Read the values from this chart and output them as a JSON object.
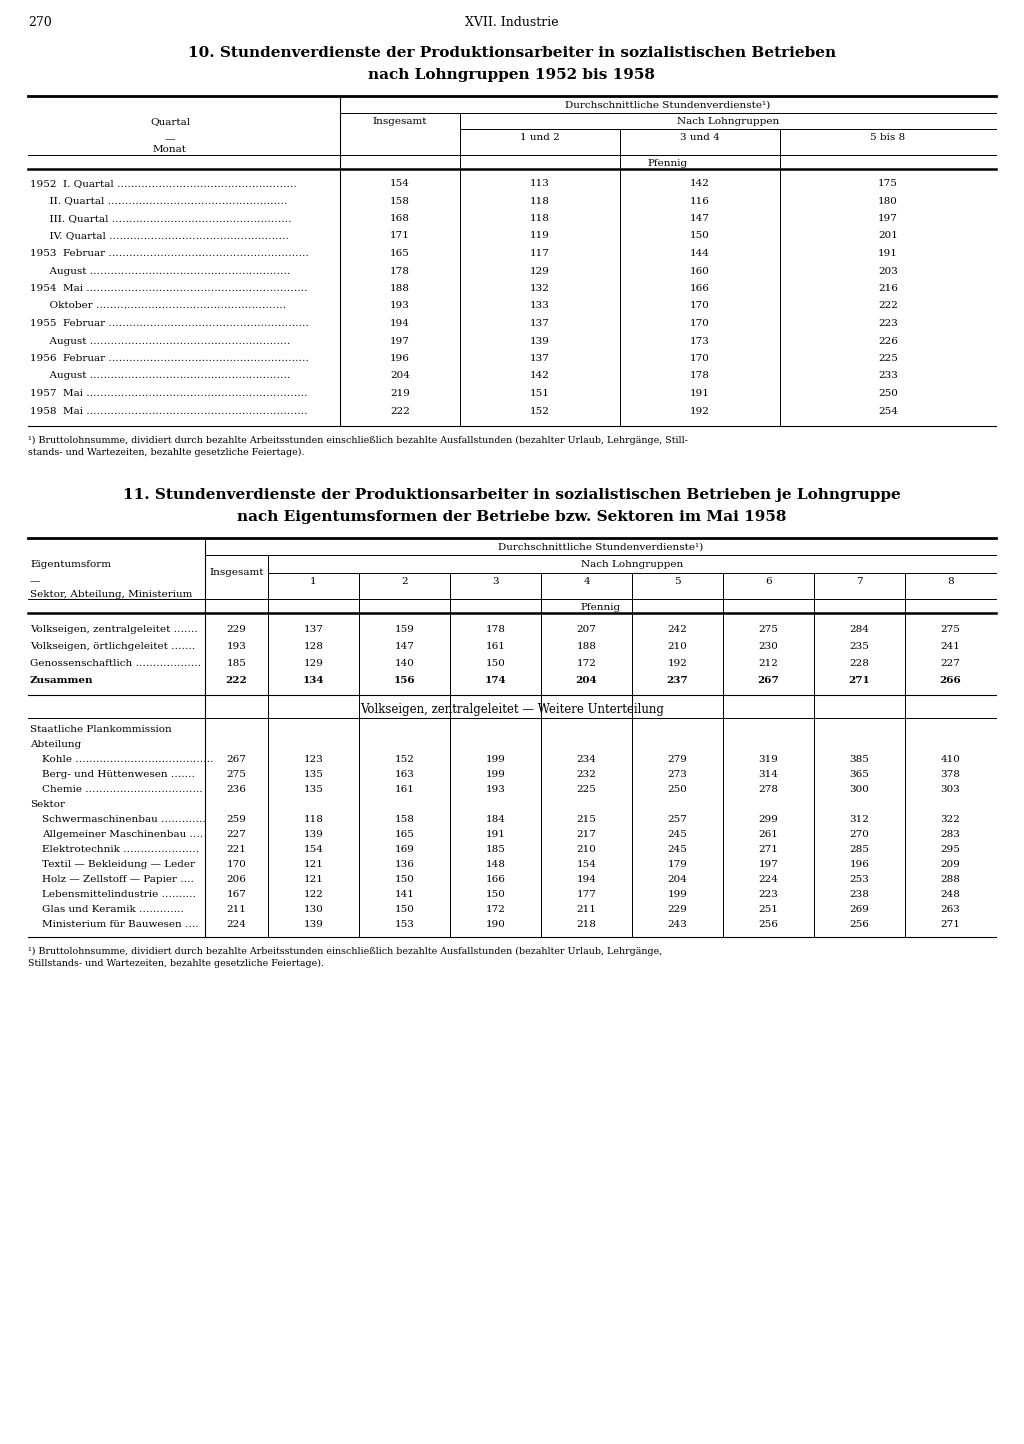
{
  "page_number": "270",
  "page_header": "XVII. Industrie",
  "title10_line1": "10. Stundenverdienste der Produktionsarbeiter in sozialistischen Betrieben",
  "title10_line2": "nach Lohngruppen 1952 bis 1958",
  "table10_rows": [
    {
      "label": "1952  I. Quartal …………………………………………….",
      "insgesamt": "154",
      "c1": "113",
      "c2": "142",
      "c3": "175"
    },
    {
      "label": "      II. Quartal …………………………………………….",
      "insgesamt": "158",
      "c1": "118",
      "c2": "116",
      "c3": "180"
    },
    {
      "label": "      III. Quartal …………………………………………….",
      "insgesamt": "168",
      "c1": "118",
      "c2": "147",
      "c3": "197"
    },
    {
      "label": "      IV. Quartal …………………………………………….",
      "insgesamt": "171",
      "c1": "119",
      "c2": "150",
      "c3": "201"
    },
    {
      "label": "1953  Februar ………………………………………………….",
      "insgesamt": "165",
      "c1": "117",
      "c2": "144",
      "c3": "191"
    },
    {
      "label": "      August ………………………………………………….",
      "insgesamt": "178",
      "c1": "129",
      "c2": "160",
      "c3": "203"
    },
    {
      "label": "1954  Mai ……………………………………………………….",
      "insgesamt": "188",
      "c1": "132",
      "c2": "166",
      "c3": "216"
    },
    {
      "label": "      Oktober ……………………………………………….",
      "insgesamt": "193",
      "c1": "133",
      "c2": "170",
      "c3": "222"
    },
    {
      "label": "1955  Februar ………………………………………………….",
      "insgesamt": "194",
      "c1": "137",
      "c2": "170",
      "c3": "223"
    },
    {
      "label": "      August ………………………………………………….",
      "insgesamt": "197",
      "c1": "139",
      "c2": "173",
      "c3": "226"
    },
    {
      "label": "1956  Februar ………………………………………………….",
      "insgesamt": "196",
      "c1": "137",
      "c2": "170",
      "c3": "225"
    },
    {
      "label": "      August ………………………………………………….",
      "insgesamt": "204",
      "c1": "142",
      "c2": "178",
      "c3": "233"
    },
    {
      "label": "1957  Mai ……………………………………………………….",
      "insgesamt": "219",
      "c1": "151",
      "c2": "191",
      "c3": "250"
    },
    {
      "label": "1958  Mai ……………………………………………………….",
      "insgesamt": "222",
      "c1": "152",
      "c2": "192",
      "c3": "254"
    }
  ],
  "footnote10_line1": "¹) Bruttolohnsumme, dividiert durch bezahlte Arbeitsstunden einschließlich bezahlte Ausfallstunden (bezahlter Urlaub, Lehrgänge, Still-",
  "footnote10_line2": "stands- und Wartezeiten, bezahlte gesetzliche Feiertage).",
  "title11_line1": "11. Stundenverdienste der Produktionsarbeiter in sozialistischen Betrieben je Lohngruppe",
  "title11_line2": "nach Eigentumsformen der Betriebe bzw. Sektoren im Mai 1958",
  "table11_main_rows": [
    {
      "label": "Volkseigen, zentralgeleitet …….",
      "insgesamt": "229",
      "vals": [
        "137",
        "159",
        "178",
        "207",
        "242",
        "275",
        "284",
        "275"
      ],
      "bold": false
    },
    {
      "label": "Volkseigen, örtlichgeleitet …….",
      "insgesamt": "193",
      "vals": [
        "128",
        "147",
        "161",
        "188",
        "210",
        "230",
        "235",
        "241"
      ],
      "bold": false
    },
    {
      "label": "Genossenschaftlich ……………….",
      "insgesamt": "185",
      "vals": [
        "129",
        "140",
        "150",
        "172",
        "192",
        "212",
        "228",
        "227"
      ],
      "bold": false
    },
    {
      "label": "Zusammen",
      "insgesamt": "222",
      "vals": [
        "134",
        "156",
        "174",
        "204",
        "237",
        "267",
        "271",
        "266"
      ],
      "bold": true
    }
  ],
  "subtitle11": "Volkseigen, zentralgeleitet — Weitere Unterteilung",
  "table11_sub_rows": [
    {
      "label": "Staatliche Plankommission",
      "insgesamt": "",
      "vals": [
        "",
        "",
        "",
        "",
        "",
        "",
        "",
        ""
      ],
      "header": true
    },
    {
      "label": "Abteilung",
      "insgesamt": "",
      "vals": [
        "",
        "",
        "",
        "",
        "",
        "",
        "",
        ""
      ],
      "header": true
    },
    {
      "label": "Kohle ………………………………….",
      "insgesamt": "267",
      "vals": [
        "123",
        "152",
        "199",
        "234",
        "279",
        "319",
        "385",
        "410"
      ],
      "header": false
    },
    {
      "label": "Berg- und Hüttenwesen …….",
      "insgesamt": "275",
      "vals": [
        "135",
        "163",
        "199",
        "232",
        "273",
        "314",
        "365",
        "378"
      ],
      "header": false
    },
    {
      "label": "Chemie …………………………….",
      "insgesamt": "236",
      "vals": [
        "135",
        "161",
        "193",
        "225",
        "250",
        "278",
        "300",
        "303"
      ],
      "header": false
    },
    {
      "label": "Sektor",
      "insgesamt": "",
      "vals": [
        "",
        "",
        "",
        "",
        "",
        "",
        "",
        ""
      ],
      "header": true
    },
    {
      "label": "Schwermaschinenbau ………….",
      "insgesamt": "259",
      "vals": [
        "118",
        "158",
        "184",
        "215",
        "257",
        "299",
        "312",
        "322"
      ],
      "header": false
    },
    {
      "label": "Allgemeiner Maschinenbau ….",
      "insgesamt": "227",
      "vals": [
        "139",
        "165",
        "191",
        "217",
        "245",
        "261",
        "270",
        "283"
      ],
      "header": false
    },
    {
      "label": "Elektrotechnik ………………….",
      "insgesamt": "221",
      "vals": [
        "154",
        "169",
        "185",
        "210",
        "245",
        "271",
        "285",
        "295"
      ],
      "header": false
    },
    {
      "label": "Textil — Bekleidung — Leder",
      "insgesamt": "170",
      "vals": [
        "121",
        "136",
        "148",
        "154",
        "179",
        "197",
        "196",
        "209"
      ],
      "header": false
    },
    {
      "label": "Holz — Zellstoff — Papier ….",
      "insgesamt": "206",
      "vals": [
        "121",
        "150",
        "166",
        "194",
        "204",
        "224",
        "253",
        "288"
      ],
      "header": false
    },
    {
      "label": "Lebensmittelindustrie ……….",
      "insgesamt": "167",
      "vals": [
        "122",
        "141",
        "150",
        "177",
        "199",
        "223",
        "238",
        "248"
      ],
      "header": false
    },
    {
      "label": "Glas und Keramik ………….",
      "insgesamt": "211",
      "vals": [
        "130",
        "150",
        "172",
        "211",
        "229",
        "251",
        "269",
        "263"
      ],
      "header": false
    },
    {
      "label": "Ministerium für Bauwesen ….",
      "insgesamt": "224",
      "vals": [
        "139",
        "153",
        "190",
        "218",
        "243",
        "256",
        "256",
        "271"
      ],
      "header": false
    }
  ],
  "footnote11_line1": "¹) Bruttolohnsumme, dividiert durch bezahlte Arbeitsstunden einschließlich bezahlte Ausfallstunden (bezahlter Urlaub, Lehrgänge,",
  "footnote11_line2": "Stillstands- und Wartezeiten, bezahlte gesetzliche Feiertage).",
  "bg_color": "#ffffff"
}
